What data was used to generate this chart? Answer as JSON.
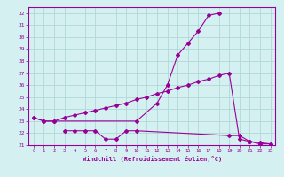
{
  "xlabel": "Windchill (Refroidissement éolien,°C)",
  "ylim": [
    21,
    32.5
  ],
  "xlim": [
    -0.5,
    23.5
  ],
  "yticks": [
    21,
    22,
    23,
    24,
    25,
    26,
    27,
    28,
    29,
    30,
    31,
    32
  ],
  "xticks": [
    0,
    1,
    2,
    3,
    4,
    5,
    6,
    7,
    8,
    9,
    10,
    11,
    12,
    13,
    14,
    15,
    16,
    17,
    18,
    19,
    20,
    21,
    22,
    23
  ],
  "color": "#990099",
  "bg_color": "#d4f0f0",
  "grid_color": "#b0d8d8",
  "line1_x": [
    0,
    1,
    2,
    10,
    12,
    13,
    14,
    15,
    16,
    17,
    18
  ],
  "line1_y": [
    23.3,
    23.0,
    23.0,
    23.0,
    24.5,
    26.0,
    28.5,
    29.5,
    30.5,
    31.8,
    32.0
  ],
  "line2_x": [
    0,
    1,
    2,
    3,
    4,
    5,
    6,
    7,
    8,
    9,
    10,
    11,
    12,
    13,
    14,
    15,
    16,
    17,
    18,
    19,
    20,
    21,
    22,
    23
  ],
  "line2_y": [
    23.3,
    23.0,
    23.0,
    23.3,
    23.5,
    23.7,
    23.9,
    24.1,
    24.3,
    24.5,
    24.8,
    25.0,
    25.3,
    25.5,
    25.8,
    26.0,
    26.3,
    26.5,
    26.8,
    27.0,
    21.5,
    21.3,
    21.2,
    21.1
  ],
  "line3_x": [
    3,
    4,
    5,
    6,
    7,
    8,
    9,
    10,
    19,
    20,
    21,
    22,
    23
  ],
  "line3_y": [
    22.2,
    22.2,
    22.2,
    22.2,
    21.5,
    21.5,
    22.2,
    22.2,
    21.8,
    21.8,
    21.3,
    21.1,
    21.1
  ]
}
